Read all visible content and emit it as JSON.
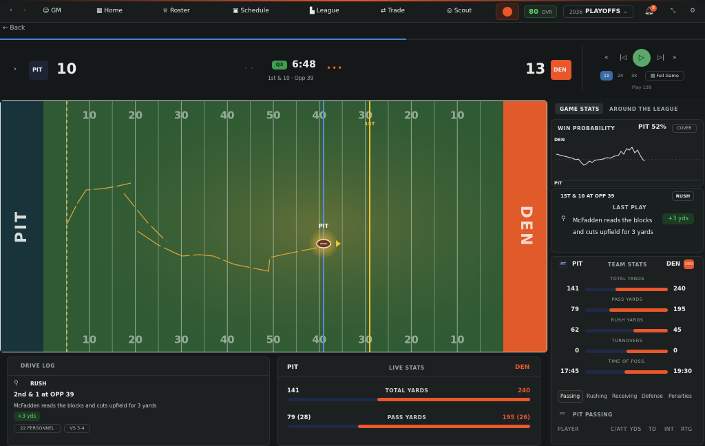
{
  "nav": {
    "gm": "GM",
    "items": [
      "Home",
      "Roster",
      "Schedule",
      "League",
      "Trade",
      "Scout"
    ],
    "ovr_value": "80",
    "ovr_label": "OVR",
    "season": "2036",
    "phase": "PLAYOFFS",
    "notifications": "8"
  },
  "back": "Back",
  "scoreboard": {
    "home": {
      "abbr": "PIT",
      "score": "10"
    },
    "away": {
      "abbr": "DEN",
      "score": "13"
    },
    "quarter": "Q3",
    "clock": "6:48",
    "down_distance": "1st & 10 · Opp 39",
    "speeds": [
      "1x",
      "2x",
      "3x"
    ],
    "full_game": "Full Game",
    "play": "Play 128"
  },
  "field": {
    "numbers": [
      "10",
      "20",
      "30",
      "40",
      "50",
      "40",
      "30",
      "20",
      "10"
    ],
    "first_down": "1ST",
    "ball_team": "PIT",
    "left_endzone": "PIT",
    "right_endzone": "DEN"
  },
  "tabs": [
    "GAME STATS",
    "AROUND THE LEAGUE"
  ],
  "win_probability": {
    "title": "WIN PROBABILITY",
    "leader": "PIT 52%",
    "button": "COVER",
    "top": "DEN",
    "bottom": "PIT"
  },
  "situation": {
    "down": "1ST & 10 AT OPP 39",
    "type": "RUSH",
    "heading": "LAST PLAY",
    "text": "McFadden reads the blocks and cuts upfield for 3 yards",
    "gain": "+3 yds"
  },
  "team_stats": {
    "home": "PIT",
    "title": "TEAM STATS",
    "away": "DEN",
    "rows": [
      {
        "label": "TOTAL YARDS",
        "home": "141",
        "away": "240"
      },
      {
        "label": "PASS YARDS",
        "home": "79",
        "away": "195"
      },
      {
        "label": "RUSH YARDS",
        "home": "62",
        "away": "45"
      },
      {
        "label": "TURNOVERS",
        "home": "0",
        "away": "0"
      },
      {
        "label": "TIME OF POSS.",
        "home": "17:45",
        "away": "19:30"
      }
    ]
  },
  "stat_tabs": [
    "Passing",
    "Rushing",
    "Receiving",
    "Defense",
    "Penalties"
  ],
  "passing": {
    "title": "PIT PASSING",
    "columns": [
      "PLAYER",
      "C/ATT",
      "YDS",
      "TD",
      "INT",
      "RTG"
    ]
  },
  "drive_log": {
    "title": "DRIVE LOG",
    "entries": [
      {
        "type": "RUSH",
        "situation": "2nd & 1 at OPP 39",
        "text": "McFadden reads the blocks and cuts upfield for 3 yards",
        "gain": "+3 yds",
        "tags": [
          "22 PERSONNEL",
          "VS 3-4"
        ]
      }
    ]
  },
  "live_stats": {
    "home": "PIT",
    "title": "LIVE STATS",
    "away": "DEN",
    "rows": [
      {
        "label": "TOTAL YARDS",
        "home": "141",
        "away": "240"
      },
      {
        "label": "PASS YARDS",
        "home": "79 (28)",
        "away": "195 (26)"
      }
    ]
  }
}
